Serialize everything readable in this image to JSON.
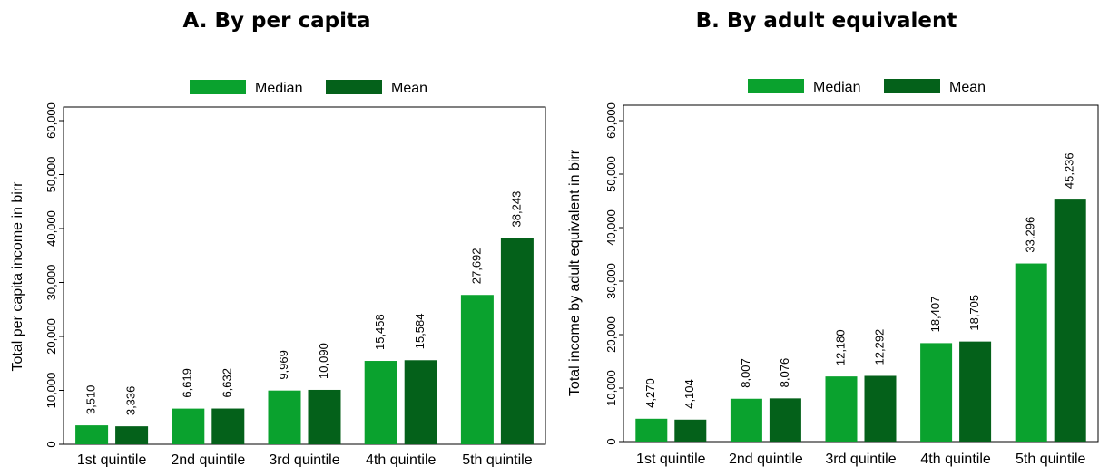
{
  "chart_data": [
    {
      "type": "bar",
      "title": "A. By per capita",
      "ylabel": "Total per capita income in birr",
      "xlabel": "",
      "categories": [
        "1st quintile",
        "2nd quintile",
        "3rd quintile",
        "4th quintile",
        "5th quintile"
      ],
      "series": [
        {
          "name": "Median",
          "values": [
            3510,
            6619,
            9969,
            15458,
            27692
          ],
          "labels": [
            "3,510",
            "6,619",
            "9,969",
            "15,458",
            "27,692"
          ],
          "color": "#0aa22e"
        },
        {
          "name": "Mean",
          "values": [
            3336,
            6632,
            10090,
            15584,
            38243
          ],
          "labels": [
            "3,336",
            "6,632",
            "10,090",
            "15,584",
            "38,243"
          ],
          "color": "#04611a"
        }
      ],
      "ylim": [
        0,
        60000
      ],
      "yticks": [
        0,
        10000,
        20000,
        30000,
        40000,
        50000,
        60000
      ],
      "ytick_labels": [
        "0",
        "10,000",
        "20,000",
        "30,000",
        "40,000",
        "50,000",
        "60,000"
      ],
      "legend": "top-center",
      "grid": false
    },
    {
      "type": "bar",
      "title": "B. By adult equivalent",
      "ylabel": "Total income by adult equivalent in birr",
      "xlabel": "",
      "categories": [
        "1st quintile",
        "2nd quintile",
        "3rd quintile",
        "4th quintile",
        "5th quintile"
      ],
      "series": [
        {
          "name": "Median",
          "values": [
            4270,
            8007,
            12180,
            18407,
            33296
          ],
          "labels": [
            "4,270",
            "8,007",
            "12,180",
            "18,407",
            "33,296"
          ],
          "color": "#0aa22e"
        },
        {
          "name": "Mean",
          "values": [
            4104,
            8076,
            12292,
            18705,
            45236
          ],
          "labels": [
            "4,104",
            "8,076",
            "12,292",
            "18,705",
            "45,236"
          ],
          "color": "#04611a"
        }
      ],
      "ylim": [
        0,
        60000
      ],
      "yticks": [
        0,
        10000,
        20000,
        30000,
        40000,
        50000,
        60000
      ],
      "ytick_labels": [
        "0",
        "10,000",
        "20,000",
        "30,000",
        "40,000",
        "50,000",
        "60,000"
      ],
      "legend": "top-center",
      "grid": false
    }
  ]
}
